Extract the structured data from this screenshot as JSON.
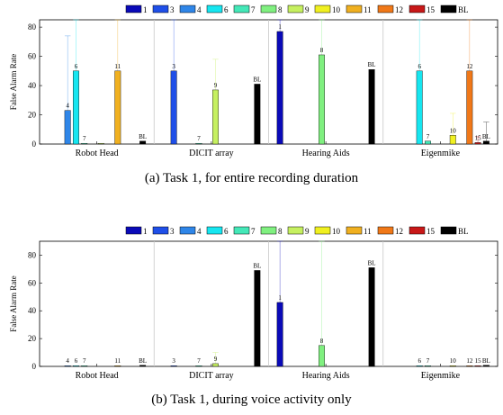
{
  "legend_entries": [
    "1",
    "3",
    "4",
    "6",
    "7",
    "8",
    "9",
    "10",
    "11",
    "12",
    "15",
    "BL"
  ],
  "colors": {
    "1": "#0a0ab8",
    "3": "#1f4fe8",
    "4": "#2f86e8",
    "6": "#16e6f0",
    "7": "#44e8b8",
    "8": "#80f080",
    "9": "#c6f060",
    "10": "#f0f020",
    "11": "#f0b020",
    "12": "#f07818",
    "15": "#c81818",
    "BL": "#000000"
  },
  "chart_data": [
    {
      "type": "bar",
      "title": "",
      "caption": "(a) Task 1, for entire recording duration",
      "ylabel": "False Alarm Rate",
      "ylim": [
        0,
        85
      ],
      "yticks": [
        0,
        20,
        40,
        60,
        80
      ],
      "categories": [
        "Robot Head",
        "DICIT array",
        "Hearing Aids",
        "Eigenmike"
      ],
      "series_order": [
        "1",
        "3",
        "4",
        "6",
        "7",
        "8",
        "9",
        "10",
        "11",
        "12",
        "15",
        "BL"
      ],
      "groups": [
        {
          "category": "Robot Head",
          "bars": [
            {
              "series": "4",
              "value": 23,
              "label": "4",
              "err_upper": 74
            },
            {
              "series": "6",
              "value": 50,
              "label": "6",
              "err_upper": 85
            },
            {
              "series": "7",
              "value": 0.5,
              "label": "7"
            },
            {
              "series": "9",
              "value": 0.5,
              "label": ""
            },
            {
              "series": "11",
              "value": 50,
              "label": "11",
              "err_upper": 85
            },
            {
              "series": "BL",
              "value": 2,
              "label": "BL"
            }
          ]
        },
        {
          "category": "DICIT array",
          "bars": [
            {
              "series": "3",
              "value": 50,
              "label": "3",
              "err_upper": 85
            },
            {
              "series": "7",
              "value": 0.5,
              "label": "7"
            },
            {
              "series": "9",
              "value": 37,
              "label": "9",
              "err_upper": 58
            },
            {
              "series": "BL",
              "value": 41,
              "label": "BL"
            }
          ]
        },
        {
          "category": "Hearing Aids",
          "bars": [
            {
              "series": "1",
              "value": 77,
              "label": "1",
              "err_upper": 85
            },
            {
              "series": "8",
              "value": 61,
              "label": "8",
              "err_upper": 85
            },
            {
              "series": "BL",
              "value": 51,
              "label": "BL"
            }
          ]
        },
        {
          "category": "Eigenmike",
          "bars": [
            {
              "series": "6",
              "value": 50,
              "label": "6",
              "err_upper": 85
            },
            {
              "series": "7",
              "value": 2,
              "label": "7"
            },
            {
              "series": "10",
              "value": 6,
              "label": "10",
              "err_upper": 21
            },
            {
              "series": "12",
              "value": 50,
              "label": "12",
              "err_upper": 85
            },
            {
              "series": "15",
              "value": 1,
              "label": "15",
              "err_upper": 5
            },
            {
              "series": "BL",
              "value": 2,
              "label": "BL",
              "err_upper": 15
            }
          ]
        }
      ]
    },
    {
      "type": "bar",
      "title": "",
      "caption": "(b) Task 1, during voice activity only",
      "ylabel": "False Alarm Rate",
      "ylim": [
        0,
        90
      ],
      "yticks": [
        0,
        20,
        40,
        60,
        80
      ],
      "categories": [
        "Robot Head",
        "DICIT array",
        "Hearing Aids",
        "Eigenmike"
      ],
      "series_order": [
        "1",
        "3",
        "4",
        "6",
        "7",
        "8",
        "9",
        "10",
        "11",
        "12",
        "15",
        "BL"
      ],
      "groups": [
        {
          "category": "Robot Head",
          "bars": [
            {
              "series": "4",
              "value": 0.3,
              "label": "4"
            },
            {
              "series": "6",
              "value": 0.3,
              "label": "6"
            },
            {
              "series": "7",
              "value": 0.3,
              "label": "7"
            },
            {
              "series": "11",
              "value": 0.3,
              "label": "11"
            },
            {
              "series": "BL",
              "value": 0.8,
              "label": "BL"
            }
          ]
        },
        {
          "category": "DICIT array",
          "bars": [
            {
              "series": "3",
              "value": 0.3,
              "label": "3"
            },
            {
              "series": "7",
              "value": 0.3,
              "label": "7"
            },
            {
              "series": "9",
              "value": 2,
              "label": "9",
              "err_upper": 10
            },
            {
              "series": "BL",
              "value": 69,
              "label": "BL"
            }
          ]
        },
        {
          "category": "Hearing Aids",
          "bars": [
            {
              "series": "1",
              "value": 46,
              "label": "1",
              "err_upper": 90
            },
            {
              "series": "8",
              "value": 15,
              "label": "8",
              "err_upper": 90
            },
            {
              "series": "BL",
              "value": 71,
              "label": "BL"
            }
          ]
        },
        {
          "category": "Eigenmike",
          "bars": [
            {
              "series": "6",
              "value": 0.3,
              "label": "6"
            },
            {
              "series": "7",
              "value": 0.3,
              "label": "7"
            },
            {
              "series": "10",
              "value": 0.3,
              "label": "10"
            },
            {
              "series": "12",
              "value": 0.3,
              "label": "12"
            },
            {
              "series": "15",
              "value": 0.3,
              "label": "15"
            },
            {
              "series": "BL",
              "value": 0.8,
              "label": "BL"
            }
          ]
        }
      ]
    }
  ]
}
